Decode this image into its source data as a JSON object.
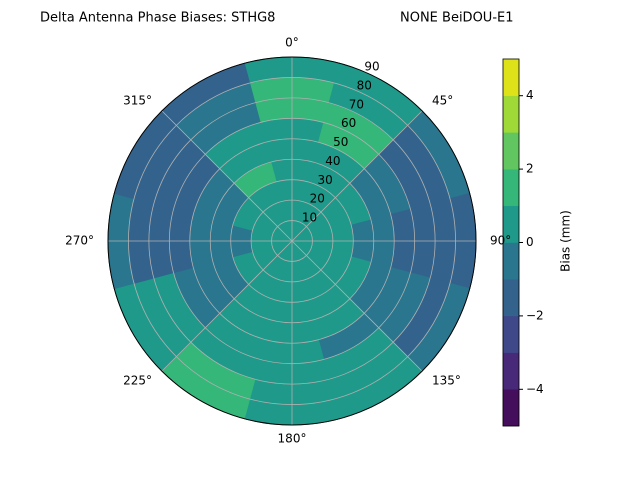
{
  "chart_data": {
    "type": "polar_contour",
    "title": "Delta Antenna Phase Biases: STHG8",
    "subtitle": "NONE BeiDOU-E1",
    "colorbar_label": "Bias (mm)",
    "azimuth": [
      0,
      30,
      60,
      90,
      120,
      150,
      180,
      210,
      240,
      270,
      300,
      330
    ],
    "zenith": [
      5,
      15,
      25,
      35,
      45,
      55,
      65,
      75,
      85
    ],
    "values": [
      [
        0.5,
        0.5,
        0.5,
        0.5,
        0.5,
        0.5,
        1.5,
        1.5,
        0.5
      ],
      [
        0.5,
        0.5,
        0.5,
        0.5,
        0.5,
        1.5,
        1.5,
        0.5,
        0.5
      ],
      [
        0.5,
        0.5,
        0.5,
        0.5,
        -0.5,
        -0.5,
        -1.5,
        -1.5,
        -0.5
      ],
      [
        0.5,
        0.5,
        0.5,
        -0.5,
        -0.5,
        -1.5,
        -1.5,
        -1.5,
        -1.5
      ],
      [
        0.5,
        0.5,
        0.5,
        0.5,
        -0.5,
        -0.5,
        -0.5,
        -1.5,
        -0.5
      ],
      [
        0.5,
        0.5,
        0.5,
        0.5,
        0.5,
        -0.5,
        0.5,
        0.5,
        0.5
      ],
      [
        0.5,
        0.5,
        0.5,
        0.5,
        0.5,
        0.5,
        0.5,
        0.5,
        0.5
      ],
      [
        0.5,
        0.5,
        0.5,
        0.5,
        0.5,
        0.5,
        0.5,
        1.5,
        1.5
      ],
      [
        0.5,
        0.5,
        0.5,
        -0.5,
        -0.5,
        -0.5,
        0.5,
        0.5,
        0.5
      ],
      [
        0.5,
        0.5,
        -0.5,
        -0.5,
        -0.5,
        -1.5,
        -1.5,
        -1.5,
        -0.5
      ],
      [
        0.5,
        0.5,
        0.5,
        -0.5,
        -0.5,
        -1.5,
        -1.5,
        -1.5,
        -1.5
      ],
      [
        0.5,
        0.5,
        0.5,
        1.5,
        0.5,
        0.5,
        -0.5,
        -0.5,
        -1.5
      ]
    ],
    "levels": [
      -5,
      -4,
      -3,
      -2,
      -1,
      0,
      1,
      2,
      3,
      4,
      5
    ],
    "colors": [
      "#450e5c",
      "#482979",
      "#3f4889",
      "#33638d",
      "#2a768e",
      "#1f9a8a",
      "#35b779",
      "#62c660",
      "#9fd938",
      "#dde318"
    ],
    "rlim": [
      0,
      90
    ],
    "rticks": [
      10,
      20,
      30,
      40,
      50,
      60,
      70,
      80,
      90
    ],
    "thetaticks": [
      {
        "value": 0,
        "label": "0°"
      },
      {
        "value": 45,
        "label": "45°"
      },
      {
        "value": 90,
        "label": "90°"
      },
      {
        "value": 135,
        "label": "135°"
      },
      {
        "value": 180,
        "label": "180°"
      },
      {
        "value": 225,
        "label": "225°"
      },
      {
        "value": 270,
        "label": "270°"
      },
      {
        "value": 315,
        "label": "315°"
      }
    ],
    "clim": [
      -5,
      5
    ],
    "cticks": [
      {
        "value": -4,
        "label": "−4"
      },
      {
        "value": -2,
        "label": "−2"
      },
      0,
      2,
      4
    ],
    "grid": true
  }
}
